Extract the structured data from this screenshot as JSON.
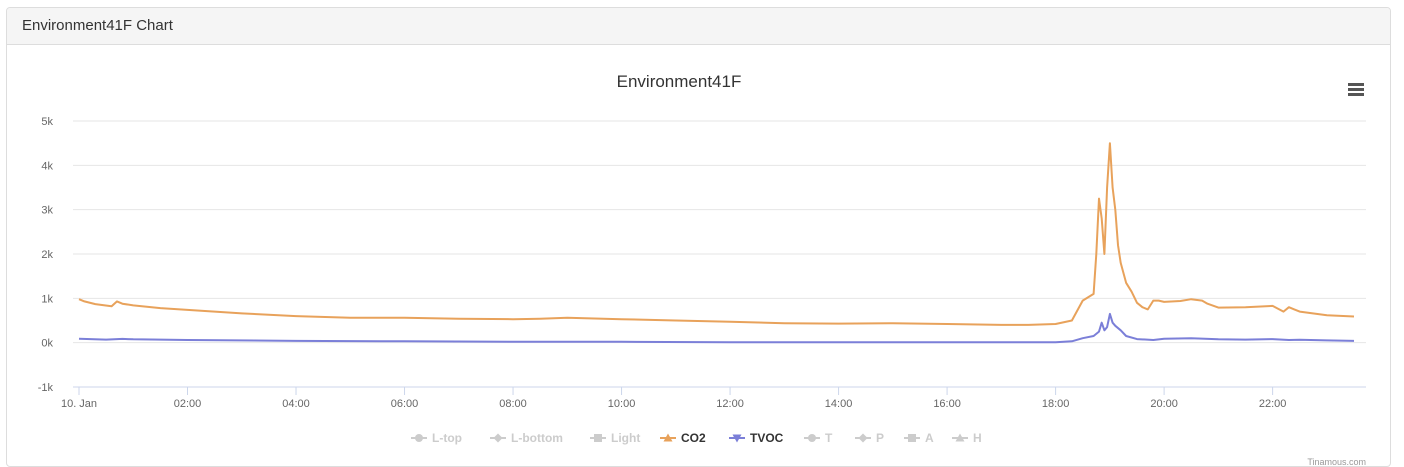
{
  "panel": {
    "title": "Environment41F Chart"
  },
  "credits": "Tinamous.com",
  "colors": {
    "co2": "#e8a25b",
    "tvoc": "#7b7fd8",
    "hidden": "#cccccc",
    "grid": "#e6e6e6"
  },
  "chart_data": {
    "type": "line",
    "title": "Environment41F",
    "xlabel": "",
    "ylabel": "",
    "ylim": [
      -1000,
      5000
    ],
    "yticks": [
      -1000,
      0,
      1000,
      2000,
      3000,
      4000,
      5000
    ],
    "ytick_labels": [
      "-1k",
      "0k",
      "1k",
      "2k",
      "3k",
      "4k",
      "5k"
    ],
    "xlim": [
      0,
      23.5
    ],
    "xticks": [
      0,
      2,
      4,
      6,
      8,
      10,
      12,
      14,
      16,
      18,
      20,
      22
    ],
    "xtick_labels": [
      "10. Jan",
      "02:00",
      "04:00",
      "06:00",
      "08:00",
      "10:00",
      "12:00",
      "14:00",
      "16:00",
      "18:00",
      "20:00",
      "22:00"
    ],
    "grid": true,
    "legend_position": "bottom",
    "legend": [
      {
        "name": "L-top",
        "symbol": "circle",
        "visible": false
      },
      {
        "name": "L-bottom",
        "symbol": "diamond",
        "visible": false
      },
      {
        "name": "Light",
        "symbol": "square",
        "visible": false
      },
      {
        "name": "CO2",
        "symbol": "triangle",
        "visible": true
      },
      {
        "name": "TVOC",
        "symbol": "triangle-down",
        "visible": true
      },
      {
        "name": "T",
        "symbol": "circle",
        "visible": false
      },
      {
        "name": "P",
        "symbol": "diamond",
        "visible": false
      },
      {
        "name": "A",
        "symbol": "square",
        "visible": false
      },
      {
        "name": "H",
        "symbol": "triangle",
        "visible": false
      }
    ],
    "series": [
      {
        "name": "CO2",
        "x": [
          0,
          0.1,
          0.3,
          0.6,
          0.7,
          0.8,
          1.0,
          1.5,
          2.0,
          3.0,
          4.0,
          5.0,
          5.5,
          6.0,
          7.0,
          8.0,
          8.5,
          9.0,
          10.0,
          11.0,
          12.0,
          13.0,
          14.0,
          15.0,
          16.0,
          17.0,
          17.5,
          18.0,
          18.3,
          18.5,
          18.7,
          18.75,
          18.8,
          18.85,
          18.9,
          18.95,
          19.0,
          19.05,
          19.1,
          19.15,
          19.2,
          19.3,
          19.4,
          19.5,
          19.6,
          19.7,
          19.8,
          19.9,
          20.0,
          20.3,
          20.5,
          20.7,
          20.8,
          21.0,
          21.5,
          22.0,
          22.2,
          22.3,
          22.4,
          22.5,
          23.0,
          23.5
        ],
        "values": [
          980,
          930,
          870,
          820,
          930,
          880,
          840,
          780,
          740,
          660,
          600,
          560,
          560,
          560,
          540,
          530,
          540,
          560,
          530,
          500,
          470,
          440,
          430,
          440,
          420,
          400,
          400,
          420,
          500,
          950,
          1100,
          2000,
          3250,
          2800,
          2000,
          3500,
          4500,
          3500,
          3000,
          2200,
          1800,
          1350,
          1150,
          900,
          800,
          750,
          950,
          950,
          920,
          940,
          980,
          950,
          880,
          790,
          800,
          830,
          700,
          800,
          750,
          700,
          620,
          590
        ]
      },
      {
        "name": "TVOC",
        "x": [
          0,
          0.5,
          0.8,
          1.0,
          2.0,
          4.0,
          6.0,
          8.0,
          10.0,
          12.0,
          14.0,
          16.0,
          18.0,
          18.3,
          18.5,
          18.7,
          18.8,
          18.85,
          18.9,
          18.95,
          19.0,
          19.05,
          19.1,
          19.2,
          19.3,
          19.5,
          19.8,
          20.0,
          20.5,
          21.0,
          21.5,
          22.0,
          22.3,
          22.5,
          23.0,
          23.5
        ],
        "values": [
          90,
          70,
          85,
          75,
          60,
          40,
          30,
          20,
          20,
          10,
          10,
          10,
          10,
          30,
          100,
          150,
          250,
          450,
          280,
          350,
          650,
          450,
          380,
          280,
          150,
          80,
          60,
          90,
          100,
          75,
          70,
          80,
          60,
          65,
          50,
          40
        ]
      }
    ]
  }
}
